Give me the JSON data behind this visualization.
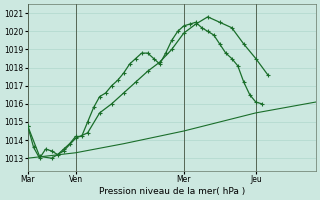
{
  "bg_color": "#cce8e0",
  "grid_color": "#b0d8cc",
  "line_color": "#1a6e2a",
  "xlabel": "Pression niveau de la mer( hPa )",
  "ylim": [
    1012.3,
    1021.5
  ],
  "yticks": [
    1013,
    1014,
    1015,
    1016,
    1017,
    1018,
    1019,
    1020,
    1021
  ],
  "day_labels": [
    "Mar",
    "Ven",
    "Mer",
    "Jeu"
  ],
  "day_positions": [
    0,
    16,
    52,
    76
  ],
  "vline_positions": [
    0,
    16,
    52,
    76
  ],
  "xlim": [
    0,
    96
  ],
  "line1_x": [
    0,
    2,
    4,
    6,
    8,
    10,
    12,
    14,
    16,
    18,
    20,
    22,
    24,
    26,
    28,
    30,
    32,
    34,
    36,
    38,
    40,
    42,
    44,
    46,
    48,
    50,
    52,
    54,
    56,
    58,
    60,
    62,
    64,
    66,
    68,
    70,
    72,
    74,
    76,
    78,
    80,
    82,
    84
  ],
  "line1_y": [
    1014.8,
    1013.6,
    1013.0,
    1013.5,
    1013.4,
    1013.2,
    1013.5,
    1013.8,
    1014.2,
    1014.2,
    1015.0,
    1015.8,
    1016.4,
    1016.6,
    1017.0,
    1017.3,
    1017.7,
    1018.2,
    1018.5,
    1018.8,
    1018.8,
    1018.5,
    1018.2,
    1018.8,
    1019.5,
    1020.0,
    1020.3,
    1020.4,
    1020.5,
    1020.2,
    1020.0,
    1019.8,
    1019.3,
    1018.8,
    1018.5,
    1018.1,
    1017.2,
    1016.5,
    1016.1,
    1016.0,
    null,
    null,
    null
  ],
  "line2_x": [
    0,
    4,
    8,
    12,
    16,
    20,
    24,
    28,
    32,
    36,
    40,
    44,
    48,
    52,
    56,
    60,
    64,
    68,
    72,
    76,
    80,
    84
  ],
  "line2_y": [
    1014.8,
    1013.1,
    1013.0,
    1013.4,
    1014.1,
    1014.4,
    1015.5,
    1016.0,
    1016.6,
    1017.2,
    1017.8,
    1018.3,
    1019.0,
    1019.9,
    1020.4,
    1020.8,
    1020.5,
    1020.2,
    1019.3,
    1018.5,
    1017.6,
    null
  ],
  "line3_x": [
    0,
    16,
    32,
    52,
    76,
    96
  ],
  "line3_y": [
    1013.0,
    1013.3,
    1013.8,
    1014.5,
    1015.5,
    1016.1
  ]
}
